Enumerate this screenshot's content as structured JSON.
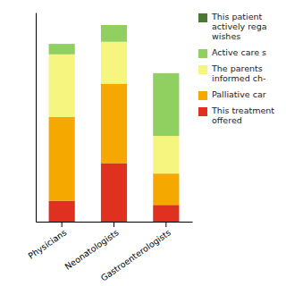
{
  "chart_data": {
    "type": "bar",
    "stacked": true,
    "categories": [
      "Physicians",
      "Neonatologists",
      "Gastroenterologists"
    ],
    "series": [
      {
        "name": "This treatment\noffered",
        "color": "#e03020",
        "values": [
          10,
          28,
          8
        ]
      },
      {
        "name": "Palliative car",
        "color": "#f5a800",
        "values": [
          40,
          38,
          15
        ]
      },
      {
        "name": "The parents\ninformed ch-",
        "color": "#f5f580",
        "values": [
          30,
          20,
          18
        ]
      },
      {
        "name": "Active care s",
        "color": "#90d060",
        "values": [
          5,
          8,
          30
        ]
      },
      {
        "name": "This patient\nactively rega\nwishes",
        "color": "#4a7a30",
        "values": [
          0,
          0,
          0
        ]
      }
    ],
    "ylim": [
      0,
      100
    ],
    "grid": false,
    "tick_labels": "x",
    "legend": "right"
  }
}
